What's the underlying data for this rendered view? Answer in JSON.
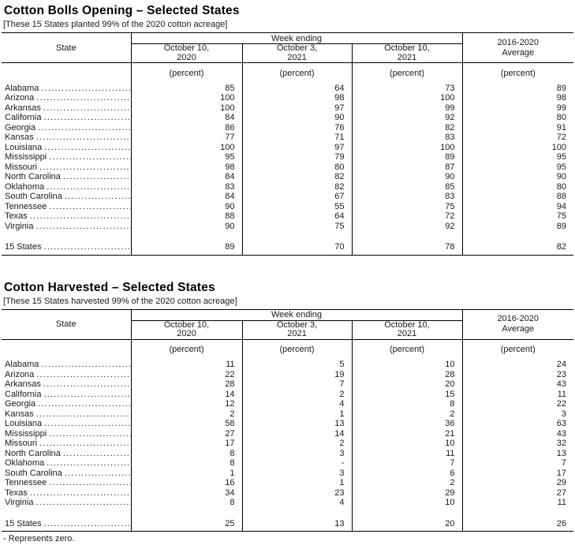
{
  "footnote": "- Represents zero.",
  "tables": [
    {
      "title": "Cotton Bolls Opening – Selected States",
      "note": "[These 15 States planted 99% of the 2020 cotton acreage]",
      "header": {
        "state_label": "State",
        "week_ending_label": "Week ending",
        "week_columns": [
          "October 10,\n2020",
          "October 3,\n2021",
          "October 10,\n2021"
        ],
        "average_label": "2016-2020\nAverage",
        "unit_label": "(percent)"
      },
      "rows": [
        {
          "state": "Alabama",
          "values": [
            "85",
            "64",
            "73",
            "89"
          ]
        },
        {
          "state": "Arizona",
          "values": [
            "100",
            "98",
            "100",
            "98"
          ]
        },
        {
          "state": "Arkansas",
          "values": [
            "100",
            "97",
            "99",
            "99"
          ]
        },
        {
          "state": "California",
          "values": [
            "84",
            "90",
            "92",
            "80"
          ]
        },
        {
          "state": "Georgia",
          "values": [
            "86",
            "76",
            "82",
            "91"
          ]
        },
        {
          "state": "Kansas",
          "values": [
            "77",
            "71",
            "83",
            "72"
          ]
        },
        {
          "state": "Louisiana",
          "values": [
            "100",
            "97",
            "100",
            "100"
          ]
        },
        {
          "state": "Mississippi",
          "values": [
            "95",
            "79",
            "89",
            "95"
          ]
        },
        {
          "state": "Missouri",
          "values": [
            "98",
            "80",
            "87",
            "95"
          ]
        },
        {
          "state": "North Carolina",
          "values": [
            "84",
            "82",
            "90",
            "90"
          ]
        },
        {
          "state": "Oklahoma",
          "values": [
            "83",
            "82",
            "85",
            "80"
          ]
        },
        {
          "state": "South Carolina",
          "values": [
            "84",
            "67",
            "83",
            "88"
          ]
        },
        {
          "state": "Tennessee",
          "values": [
            "90",
            "55",
            "75",
            "94"
          ]
        },
        {
          "state": "Texas",
          "values": [
            "88",
            "64",
            "72",
            "75"
          ]
        },
        {
          "state": "Virginia",
          "values": [
            "90",
            "75",
            "92",
            "89"
          ]
        }
      ],
      "total_row": {
        "state": "15 States",
        "values": [
          "89",
          "70",
          "78",
          "82"
        ]
      }
    },
    {
      "title": "Cotton Harvested – Selected States",
      "note": "[These 15 States harvested 99% of the 2020 cotton acreage]",
      "header": {
        "state_label": "State",
        "week_ending_label": "Week ending",
        "week_columns": [
          "October 10,\n2020",
          "October 3,\n2021",
          "October 10,\n2021"
        ],
        "average_label": "2016-2020\nAverage",
        "unit_label": "(percent)"
      },
      "rows": [
        {
          "state": "Alabama",
          "values": [
            "11",
            "5",
            "10",
            "24"
          ]
        },
        {
          "state": "Arizona",
          "values": [
            "22",
            "19",
            "28",
            "23"
          ]
        },
        {
          "state": "Arkansas",
          "values": [
            "28",
            "7",
            "20",
            "43"
          ]
        },
        {
          "state": "California",
          "values": [
            "14",
            "2",
            "15",
            "11"
          ]
        },
        {
          "state": "Georgia",
          "values": [
            "12",
            "4",
            "8",
            "22"
          ]
        },
        {
          "state": "Kansas",
          "values": [
            "2",
            "1",
            "2",
            "3"
          ]
        },
        {
          "state": "Louisiana",
          "values": [
            "58",
            "13",
            "36",
            "63"
          ]
        },
        {
          "state": "Mississippi",
          "values": [
            "27",
            "14",
            "21",
            "43"
          ]
        },
        {
          "state": "Missouri",
          "values": [
            "17",
            "2",
            "10",
            "32"
          ]
        },
        {
          "state": "North Carolina",
          "values": [
            "8",
            "3",
            "11",
            "13"
          ]
        },
        {
          "state": "Oklahoma",
          "values": [
            "8",
            "-",
            "7",
            "7"
          ]
        },
        {
          "state": "South Carolina",
          "values": [
            "1",
            "3",
            "6",
            "17"
          ]
        },
        {
          "state": "Tennessee",
          "values": [
            "16",
            "1",
            "2",
            "29"
          ]
        },
        {
          "state": "Texas",
          "values": [
            "34",
            "23",
            "29",
            "27"
          ]
        },
        {
          "state": "Virginia",
          "values": [
            "8",
            "4",
            "10",
            "11"
          ]
        }
      ],
      "total_row": {
        "state": "15 States",
        "values": [
          "25",
          "13",
          "20",
          "26"
        ]
      }
    }
  ]
}
